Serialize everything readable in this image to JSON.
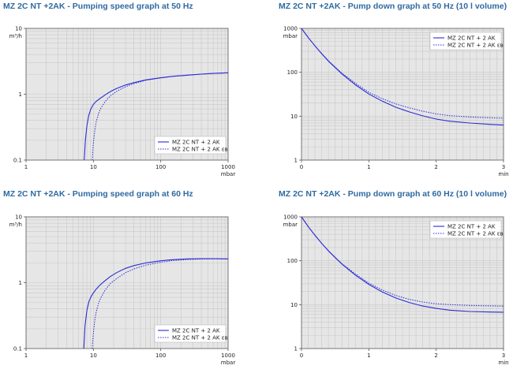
{
  "colors": {
    "title": "#2f6aa1",
    "series": "#2b2bd6",
    "plot_bg": "#e6e6e6",
    "grid": "#c9c9c9",
    "axis": "#555555"
  },
  "chart_data": [
    {
      "type": "line",
      "title": "MZ 2C NT +2AK - Pumping speed graph at 50 Hz",
      "ylabel": "m³/h",
      "xlabel": "mbar",
      "xscale": "log",
      "yscale": "log",
      "xlim": [
        1,
        1000
      ],
      "ylim": [
        0.1,
        10
      ],
      "xticks": [
        "1",
        "10",
        "100",
        "1000"
      ],
      "yticks": [
        "0.1",
        "1",
        "10"
      ],
      "grid": true,
      "legend_position": "bottom-right",
      "series": [
        {
          "name": "MZ 2C NT + 2 AK",
          "style": "solid",
          "x": [
            7.3,
            7.6,
            8,
            8.5,
            9.2,
            10,
            11,
            12.5,
            15,
            18,
            22,
            30,
            40,
            60,
            100,
            150,
            250,
            400,
            600,
            1000
          ],
          "y": [
            0.1,
            0.2,
            0.33,
            0.47,
            0.6,
            0.7,
            0.78,
            0.86,
            0.98,
            1.1,
            1.22,
            1.38,
            1.5,
            1.65,
            1.78,
            1.87,
            1.95,
            2.02,
            2.07,
            2.12
          ]
        },
        {
          "name": "MZ 2C NT + 2 AK ɛʙ",
          "style": "dotted",
          "x": [
            9.6,
            10,
            10.5,
            11,
            12,
            13,
            15,
            18,
            22,
            30,
            40,
            60,
            100,
            150,
            250,
            400,
            600,
            1000
          ],
          "y": [
            0.1,
            0.18,
            0.28,
            0.38,
            0.52,
            0.62,
            0.78,
            0.95,
            1.1,
            1.3,
            1.45,
            1.63,
            1.77,
            1.87,
            1.95,
            2.02,
            2.07,
            2.12
          ]
        }
      ]
    },
    {
      "type": "line",
      "title": "MZ 2C NT +2AK - Pump down graph at 50 Hz (10 l volume)",
      "ylabel": "mbar",
      "xlabel": "min",
      "xscale": "linear",
      "yscale": "log",
      "xlim": [
        0,
        3
      ],
      "ylim": [
        1,
        1000
      ],
      "xticks": [
        "0",
        "1",
        "2",
        "3"
      ],
      "yticks": [
        "1",
        "10",
        "100",
        "1000"
      ],
      "grid": true,
      "legend_position": "top-right",
      "series": [
        {
          "name": "MZ 2C NT + 2 AK",
          "style": "solid",
          "x": [
            0,
            0.1,
            0.2,
            0.3,
            0.4,
            0.5,
            0.6,
            0.8,
            1.0,
            1.2,
            1.4,
            1.6,
            1.8,
            2.0,
            2.2,
            2.5,
            2.8,
            3.0
          ],
          "y": [
            1000,
            620,
            400,
            265,
            180,
            128,
            92,
            52,
            32,
            22,
            16,
            12.5,
            10.2,
            8.6,
            7.7,
            7.0,
            6.5,
            6.3
          ]
        },
        {
          "name": "MZ 2C NT + 2 AK ɛʙ",
          "style": "dotted",
          "x": [
            0,
            0.1,
            0.2,
            0.3,
            0.4,
            0.5,
            0.6,
            0.8,
            1.0,
            1.2,
            1.4,
            1.6,
            1.8,
            2.0,
            2.2,
            2.5,
            2.8,
            3.0
          ],
          "y": [
            1000,
            620,
            400,
            268,
            185,
            132,
            96,
            56,
            35,
            25,
            19,
            15.5,
            13,
            11.3,
            10.3,
            9.6,
            9.2,
            9.0
          ]
        }
      ]
    },
    {
      "type": "line",
      "title": "MZ 2C NT +2AK - Pumping speed graph at 60 Hz",
      "ylabel": "m³/h",
      "xlabel": "mbar",
      "xscale": "log",
      "yscale": "log",
      "xlim": [
        1,
        1000
      ],
      "ylim": [
        0.1,
        10
      ],
      "xticks": [
        "1",
        "10",
        "100",
        "1000"
      ],
      "yticks": [
        "0.1",
        "1",
        "10"
      ],
      "grid": true,
      "legend_position": "bottom-right",
      "series": [
        {
          "name": "MZ 2C NT + 2 AK",
          "style": "solid",
          "x": [
            7.2,
            7.5,
            8,
            8.6,
            9.3,
            10,
            11,
            12.5,
            15,
            18,
            22,
            30,
            40,
            60,
            100,
            150,
            250,
            400,
            600,
            1000
          ],
          "y": [
            0.1,
            0.22,
            0.38,
            0.52,
            0.62,
            0.7,
            0.8,
            0.92,
            1.08,
            1.25,
            1.42,
            1.65,
            1.82,
            2.0,
            2.15,
            2.24,
            2.3,
            2.32,
            2.32,
            2.3
          ]
        },
        {
          "name": "MZ 2C NT + 2 AK ɛʙ",
          "style": "dotted",
          "x": [
            9.6,
            10,
            10.5,
            11,
            12,
            13,
            15,
            18,
            22,
            30,
            40,
            60,
            100,
            150,
            250,
            400,
            600,
            1000
          ],
          "y": [
            0.1,
            0.17,
            0.27,
            0.36,
            0.5,
            0.6,
            0.78,
            0.98,
            1.15,
            1.42,
            1.62,
            1.85,
            2.05,
            2.17,
            2.25,
            2.29,
            2.3,
            2.3
          ]
        }
      ]
    },
    {
      "type": "line",
      "title": "MZ 2C NT +2AK - Pump down graph at 60 Hz (10 l volume)",
      "ylabel": "mbar",
      "xlabel": "min",
      "xscale": "linear",
      "yscale": "log",
      "xlim": [
        0,
        3
      ],
      "ylim": [
        1,
        1000
      ],
      "xticks": [
        "0",
        "1",
        "2",
        "3"
      ],
      "yticks": [
        "1",
        "10",
        "100",
        "1000"
      ],
      "grid": true,
      "legend_position": "top-right",
      "series": [
        {
          "name": "MZ 2C NT + 2 AK",
          "style": "solid",
          "x": [
            0,
            0.1,
            0.2,
            0.3,
            0.4,
            0.5,
            0.6,
            0.8,
            1.0,
            1.2,
            1.4,
            1.6,
            1.8,
            2.0,
            2.2,
            2.5,
            2.8,
            3.0
          ],
          "y": [
            1000,
            600,
            380,
            248,
            168,
            118,
            84,
            47,
            29,
            19.5,
            14.2,
            11.2,
            9.3,
            8.2,
            7.5,
            7.0,
            6.8,
            6.7
          ]
        },
        {
          "name": "MZ 2C NT + 2 AK ɛʙ",
          "style": "dotted",
          "x": [
            0,
            0.1,
            0.2,
            0.3,
            0.4,
            0.5,
            0.6,
            0.8,
            1.0,
            1.2,
            1.4,
            1.6,
            1.8,
            2.0,
            2.2,
            2.5,
            2.8,
            3.0
          ],
          "y": [
            1000,
            600,
            380,
            250,
            170,
            120,
            86,
            50,
            31,
            21.5,
            16.2,
            13.2,
            11.5,
            10.5,
            10.0,
            9.6,
            9.4,
            9.3
          ]
        }
      ]
    }
  ]
}
